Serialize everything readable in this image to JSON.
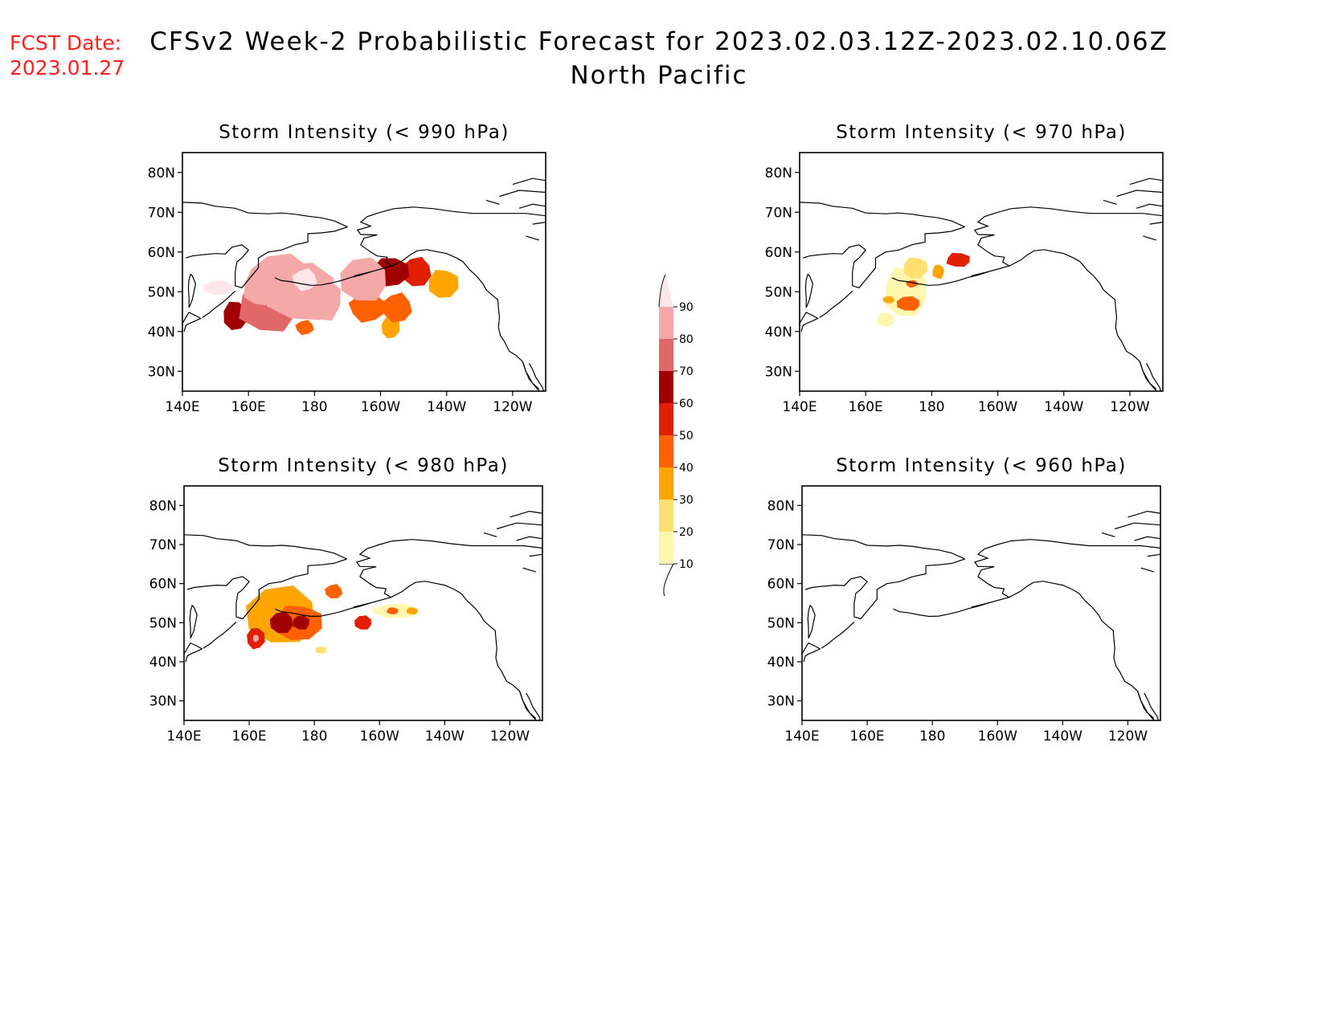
{
  "fcst": {
    "label": "FCST Date:",
    "date": "2023.01.27",
    "color": "#ff2020"
  },
  "title": {
    "line1": "CFSv2 Week-2 Probabilistic Forecast for 2023.02.03.12Z-2023.02.10.06Z",
    "line2": "North Pacific"
  },
  "axes": {
    "lon_ticks": [
      "140E",
      "160E",
      "180",
      "160W",
      "140W",
      "120W"
    ],
    "lat_ticks": [
      "80N",
      "70N",
      "60N",
      "50N",
      "40N",
      "30N"
    ],
    "lon_range": [
      140,
      250
    ],
    "lat_range": [
      25,
      85
    ]
  },
  "colorbar": {
    "levels": [
      "10",
      "20",
      "30",
      "40",
      "50",
      "60",
      "70",
      "80",
      "90"
    ],
    "colors": [
      "#fff7b0",
      "#ffe070",
      "#ffa500",
      "#ff6000",
      "#e02000",
      "#a00000",
      "#e06868",
      "#f4a8a8",
      "#ffe6ea"
    ]
  },
  "panels": [
    {
      "title": "Storm Intensity (< 990 hPa)",
      "blobs": [
        {
          "lon": 166,
          "lat": 47,
          "rx": 10,
          "ry": 8,
          "level": 7
        },
        {
          "lon": 176,
          "lat": 50,
          "rx": 12,
          "ry": 8,
          "level": 8
        },
        {
          "lon": 170,
          "lat": 54,
          "rx": 10,
          "ry": 6,
          "level": 8
        },
        {
          "lon": 163,
          "lat": 51,
          "rx": 5,
          "ry": 5,
          "level": 8
        },
        {
          "lon": 182,
          "lat": 48,
          "rx": 7,
          "ry": 6,
          "level": 8
        },
        {
          "lon": 195,
          "lat": 53,
          "rx": 8,
          "ry": 6,
          "level": 8
        },
        {
          "lon": 203,
          "lat": 55,
          "rx": 6,
          "ry": 4,
          "level": 6
        },
        {
          "lon": 196,
          "lat": 46,
          "rx": 6,
          "ry": 4,
          "level": 4
        },
        {
          "lon": 205,
          "lat": 46,
          "rx": 5,
          "ry": 4,
          "level": 4
        },
        {
          "lon": 211,
          "lat": 55,
          "rx": 5,
          "ry": 4,
          "level": 5
        },
        {
          "lon": 219,
          "lat": 52,
          "rx": 5,
          "ry": 4,
          "level": 3
        },
        {
          "lon": 203,
          "lat": 41,
          "rx": 3,
          "ry": 3,
          "level": 3
        },
        {
          "lon": 177,
          "lat": 41,
          "rx": 3,
          "ry": 2,
          "level": 4
        },
        {
          "lon": 156,
          "lat": 44,
          "rx": 4,
          "ry": 4,
          "level": 6
        },
        {
          "lon": 151,
          "lat": 51,
          "rx": 5,
          "ry": 2,
          "level": 9
        },
        {
          "lon": 177,
          "lat": 53,
          "rx": 4,
          "ry": 3,
          "level": 9
        }
      ]
    },
    {
      "title": "Storm Intensity (< 970 hPa)",
      "blobs": [
        {
          "lon": 172,
          "lat": 50,
          "rx": 7,
          "ry": 7,
          "level": 1
        },
        {
          "lon": 175,
          "lat": 56,
          "rx": 4,
          "ry": 3,
          "level": 2
        },
        {
          "lon": 188,
          "lat": 58,
          "rx": 4,
          "ry": 2,
          "level": 5
        },
        {
          "lon": 173,
          "lat": 47,
          "rx": 4,
          "ry": 2,
          "level": 4
        },
        {
          "lon": 174,
          "lat": 52,
          "rx": 2,
          "ry": 1,
          "level": 4
        },
        {
          "lon": 167,
          "lat": 48,
          "rx": 2,
          "ry": 1,
          "level": 3
        },
        {
          "lon": 182,
          "lat": 55,
          "rx": 2,
          "ry": 2,
          "level": 3
        },
        {
          "lon": 166,
          "lat": 43,
          "rx": 3,
          "ry": 2,
          "level": 1
        }
      ]
    },
    {
      "title": "Storm Intensity (< 980 hPa)",
      "blobs": [
        {
          "lon": 170,
          "lat": 52,
          "rx": 12,
          "ry": 8,
          "level": 3
        },
        {
          "lon": 175,
          "lat": 50,
          "rx": 8,
          "ry": 5,
          "level": 4
        },
        {
          "lon": 170,
          "lat": 50,
          "rx": 4,
          "ry": 3,
          "level": 6
        },
        {
          "lon": 176,
          "lat": 50,
          "rx": 3,
          "ry": 2,
          "level": 6
        },
        {
          "lon": 162,
          "lat": 46,
          "rx": 3,
          "ry": 3,
          "level": 5
        },
        {
          "lon": 162,
          "lat": 46,
          "rx": 1,
          "ry": 1,
          "level": 8
        },
        {
          "lon": 195,
          "lat": 50,
          "rx": 3,
          "ry": 2,
          "level": 5
        },
        {
          "lon": 205,
          "lat": 53,
          "rx": 8,
          "ry": 2,
          "level": 1
        },
        {
          "lon": 204,
          "lat": 53,
          "rx": 2,
          "ry": 1,
          "level": 4
        },
        {
          "lon": 210,
          "lat": 53,
          "rx": 2,
          "ry": 1,
          "level": 3
        },
        {
          "lon": 182,
          "lat": 43,
          "rx": 2,
          "ry": 1,
          "level": 2
        },
        {
          "lon": 186,
          "lat": 58,
          "rx": 3,
          "ry": 2,
          "level": 4
        }
      ]
    },
    {
      "title": "Storm Intensity (< 960 hPa)",
      "blobs": []
    }
  ]
}
